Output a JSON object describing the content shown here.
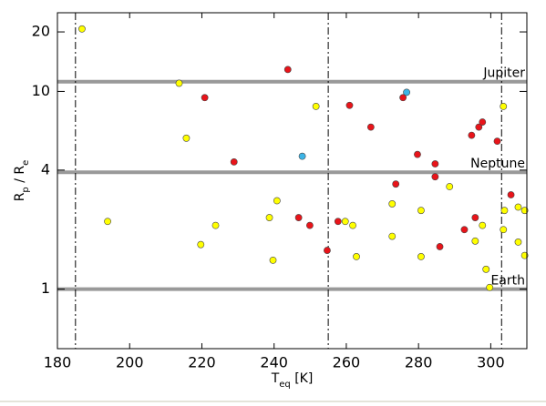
{
  "chart_data": {
    "type": "scatter",
    "log_y": true,
    "xlabel": [
      "T",
      "eq",
      " [K]"
    ],
    "ylabel": [
      "R",
      "p",
      " / R",
      "e"
    ],
    "xlim": [
      180,
      310
    ],
    "ylim": [
      0.5,
      25
    ],
    "xticks": [
      180,
      200,
      220,
      240,
      260,
      280,
      300
    ],
    "yticks": [
      1,
      4,
      10,
      20
    ],
    "vlines": [
      185,
      255,
      303
    ],
    "hlines": [
      {
        "value": 11.2,
        "label": "Jupiter"
      },
      {
        "value": 3.9,
        "label": "Neptune"
      },
      {
        "value": 1,
        "label": "Earth"
      }
    ],
    "series": [
      {
        "color": "#ffff00",
        "x": [
          186.8,
          213.7,
          215.7,
          251.6,
          303.5,
          288.6,
          240.8,
          272.7,
          280.7,
          193.9,
          223.8,
          238.7,
          259.7,
          261.8,
          303.8,
          307.6,
          309.4,
          297.7,
          303.5,
          272.7,
          295.7,
          307.6,
          219.7,
          262.8,
          280.7,
          309.4,
          239.7,
          298.7,
          299.7
        ],
        "values": [
          20.7,
          11.0,
          5.8,
          8.4,
          8.4,
          3.3,
          2.8,
          2.7,
          2.5,
          2.2,
          2.1,
          2.3,
          2.2,
          2.1,
          2.5,
          2.6,
          2.5,
          2.1,
          2.0,
          1.85,
          1.75,
          1.73,
          1.68,
          1.46,
          1.46,
          1.48,
          1.4,
          1.26,
          1.02
        ]
      },
      {
        "color": "#e8141a",
        "x": [
          220.8,
          228.9,
          243.8,
          260.9,
          266.8,
          275.7,
          279.7,
          284.6,
          284.6,
          294.7,
          296.7,
          297.7,
          301.8,
          273.7,
          305.6,
          246.8,
          249.9,
          257.7,
          295.7,
          292.7,
          254.7,
          285.9
        ],
        "values": [
          9.3,
          4.4,
          12.9,
          8.5,
          6.6,
          9.3,
          4.8,
          4.3,
          3.7,
          6.0,
          6.6,
          7.0,
          5.6,
          3.4,
          3.0,
          2.3,
          2.1,
          2.2,
          2.3,
          2.0,
          1.57,
          1.64
        ]
      },
      {
        "color": "#3cb4e6",
        "x": [
          247.8,
          276.7
        ],
        "values": [
          4.7,
          9.9
        ]
      }
    ]
  }
}
